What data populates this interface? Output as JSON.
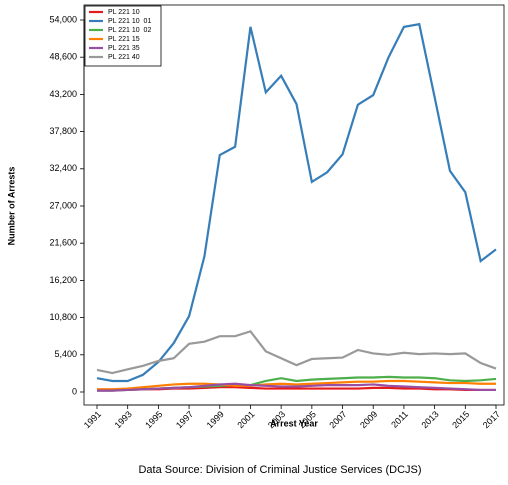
{
  "chart_data": {
    "type": "line",
    "x_label": "Arrest Year",
    "y_label": "Number of Arrests",
    "caption": "Data Source: Division of Criminal Justice Services (DCJS)",
    "x": [
      1991,
      1992,
      1993,
      1994,
      1995,
      1996,
      1997,
      1998,
      1999,
      2000,
      2001,
      2002,
      2003,
      2004,
      2005,
      2006,
      2007,
      2008,
      2009,
      2010,
      2011,
      2012,
      2013,
      2014,
      2015,
      2016,
      2017
    ],
    "xlim": [
      1991,
      2017
    ],
    "xticks": [
      1991,
      1993,
      1995,
      1997,
      1999,
      2001,
      2003,
      2005,
      2007,
      2009,
      2011,
      2013,
      2015,
      2017
    ],
    "ylim": [
      0,
      54000
    ],
    "yticks": [
      0,
      {
        "value": 5400,
        "label": "5,400"
      },
      {
        "value": 10800,
        "label": "10,800"
      },
      {
        "value": 16200,
        "label": "16,200"
      },
      {
        "value": 21600,
        "label": "21,600"
      },
      {
        "value": 27000,
        "label": "27,000"
      },
      {
        "value": 32400,
        "label": "32,400"
      },
      {
        "value": 37800,
        "label": "37,800"
      },
      {
        "value": 43200,
        "label": "43,200"
      },
      {
        "value": 48600,
        "label": "48,600"
      },
      {
        "value": 54000,
        "label": "54,000"
      }
    ],
    "legend": "top-left",
    "series": [
      {
        "name": "PL 221 10",
        "color": "#e41a1c",
        "values": [
          300,
          300,
          300,
          400,
          400,
          500,
          500,
          600,
          700,
          700,
          600,
          500,
          500,
          500,
          500,
          500,
          500,
          500,
          600,
          600,
          500,
          500,
          400,
          400,
          300,
          300,
          300
        ]
      },
      {
        "name": "PL 221 10  01",
        "color": "#377eb8",
        "values": [
          2000,
          1600,
          1600,
          2500,
          4350,
          7100,
          11000,
          19700,
          34400,
          35600,
          53000,
          43500,
          45900,
          41800,
          30500,
          31900,
          34500,
          41700,
          43100,
          48600,
          53000,
          53400,
          42800,
          32100,
          29000,
          19000,
          20700
        ]
      },
      {
        "name": "PL 221 10  02",
        "color": "#4daf4a",
        "values": [
          200,
          200,
          300,
          400,
          500,
          600,
          700,
          800,
          900,
          1000,
          1000,
          1600,
          2000,
          1600,
          1800,
          1900,
          2000,
          2100,
          2100,
          2200,
          2100,
          2100,
          2000,
          1700,
          1600,
          1700,
          1900
        ]
      },
      {
        "name": "PL 221 15",
        "color": "#ff7f00",
        "values": [
          400,
          400,
          500,
          700,
          900,
          1100,
          1200,
          1200,
          1100,
          900,
          900,
          1100,
          1200,
          1100,
          1200,
          1300,
          1400,
          1500,
          1500,
          1600,
          1600,
          1500,
          1400,
          1300,
          1300,
          1200,
          1200
        ]
      },
      {
        "name": "PL 221 35",
        "color": "#984ea3",
        "values": [
          200,
          200,
          300,
          400,
          500,
          600,
          700,
          900,
          1100,
          1200,
          1000,
          900,
          800,
          800,
          900,
          1000,
          1000,
          1000,
          1100,
          900,
          800,
          700,
          600,
          500,
          400,
          300,
          300
        ]
      },
      {
        "name": "PL 221 40",
        "color": "#999999",
        "values": [
          3200,
          2750,
          3300,
          3800,
          4500,
          4900,
          7000,
          7300,
          8100,
          8100,
          8800,
          5900,
          4900,
          3900,
          4800,
          4900,
          5000,
          6100,
          5600,
          5400,
          5700,
          5500,
          5600,
          5500,
          5600,
          4200,
          3400
        ]
      }
    ]
  }
}
